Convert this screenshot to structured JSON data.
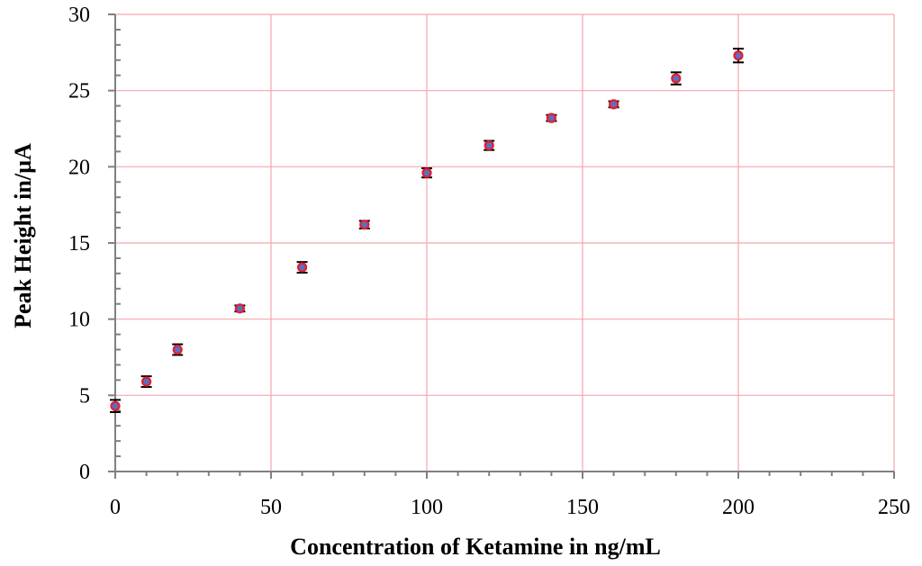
{
  "chart_data": {
    "type": "scatter",
    "title": "",
    "xlabel": "Concentration of Ketamine in ng/mL",
    "ylabel": "Peak Height in/µA",
    "xlim": [
      0,
      250
    ],
    "ylim": [
      0,
      30
    ],
    "x_ticks": [
      "0",
      "50",
      "100",
      "150",
      "200",
      "250"
    ],
    "y_ticks": [
      "0",
      "5",
      "10",
      "15",
      "20",
      "25",
      "30"
    ],
    "grid": true,
    "legend": "none",
    "series": [
      {
        "x": [
          0,
          10,
          20,
          40,
          60,
          80,
          100,
          120,
          140,
          160,
          180,
          200
        ],
        "y": [
          4.3,
          5.9,
          8.0,
          10.7,
          13.4,
          16.2,
          19.6,
          21.4,
          23.2,
          24.1,
          25.8,
          27.3
        ],
        "error": [
          0.4,
          0.35,
          0.35,
          0.2,
          0.35,
          0.25,
          0.3,
          0.3,
          0.2,
          0.2,
          0.4,
          0.45
        ]
      }
    ],
    "colors": {
      "grid": "#f4a6ae",
      "axis": "#808080",
      "marker_fill": "#5a6fc2",
      "marker_edge": "#e21e2c",
      "error_bar": "#000000"
    }
  }
}
